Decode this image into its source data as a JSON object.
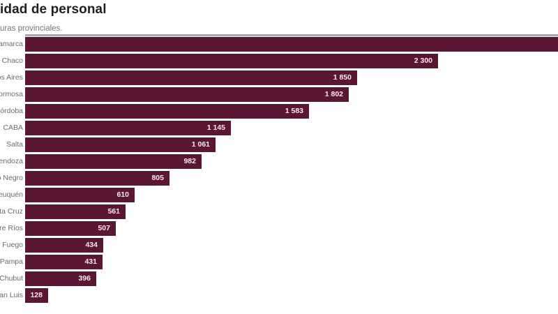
{
  "header": {
    "title_visible": "idad de personal",
    "subtitle_visible": "uras provinciales."
  },
  "chart_data": {
    "type": "bar",
    "orientation": "horizontal",
    "title": "idad de personal",
    "subtitle": "uras provinciales.",
    "note": "Image is cropped on the left (title, subtitle and category labels are cut) and on the right (first bar runs past the edge, its value not visible).",
    "categories": [
      "Catamarca",
      "Chaco",
      "Buenos Aires",
      "Formosa",
      "Córdoba",
      "CABA",
      "Salta",
      "Mendoza",
      "Río Negro",
      "Neuquén",
      "Santa Cruz",
      "Entre Ríos",
      "Tierra del Fuego",
      "La Pampa",
      "Chubut",
      "San Luis"
    ],
    "values": [
      null,
      2300,
      1850,
      1802,
      1583,
      1145,
      1061,
      982,
      805,
      610,
      561,
      507,
      434,
      431,
      396,
      128
    ],
    "value_labels": [
      "",
      "2 300",
      "1 850",
      "1 802",
      "1 583",
      "1 145",
      "1 061",
      "982",
      "805",
      "610",
      "561",
      "507",
      "434",
      "431",
      "396",
      "128"
    ],
    "first_bar_cut_off": true,
    "grid": false,
    "legend": false,
    "value_labels_inside_bars": true,
    "colors": {
      "bar": "#5a1632",
      "value_text": "#f5ecf1",
      "category_text": "#6b6b6b",
      "title_text": "#1f1f1f",
      "subtitle_text": "#767676",
      "top_strip": "#b5a3b0",
      "background": "#ffffff"
    }
  }
}
